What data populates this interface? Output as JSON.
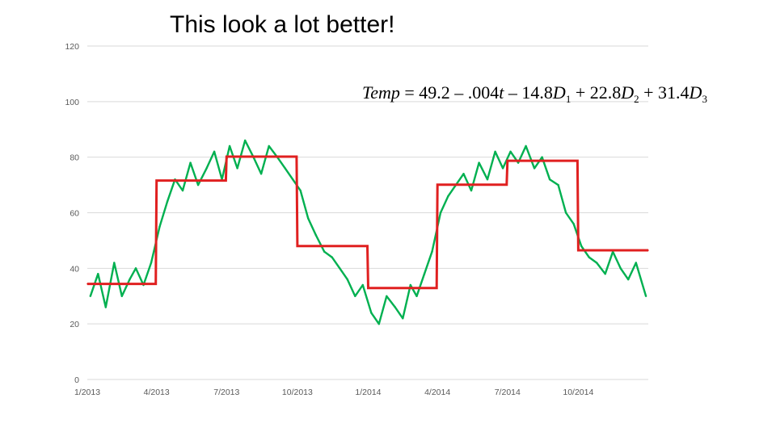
{
  "slide": {
    "title": "This look a lot better!"
  },
  "equation": {
    "lhs": "Temp",
    "eq": "=",
    "terms": [
      {
        "sign": "",
        "coef": "49.2",
        "var": "",
        "sub": ""
      },
      {
        "sign": "–",
        "coef": ".004",
        "var": "t",
        "sub": ""
      },
      {
        "sign": "–",
        "coef": "14.8",
        "var": "D",
        "sub": "1"
      },
      {
        "sign": "+",
        "coef": "22.8",
        "var": "D",
        "sub": "2"
      },
      {
        "sign": "+",
        "coef": "31.4",
        "var": "D",
        "sub": "3"
      }
    ]
  },
  "colors": {
    "observed": "#00b050",
    "fitted": "#e02020",
    "grid": "#d9d9d9",
    "tick_text": "#595959"
  },
  "chart_data": {
    "type": "line",
    "title": "",
    "xlabel": "",
    "ylabel": "",
    "ylim": [
      0,
      120
    ],
    "yticks": [
      0,
      20,
      40,
      60,
      80,
      100,
      120
    ],
    "x_ticks": [
      "1/2013",
      "4/2013",
      "7/2013",
      "10/2013",
      "1/2014",
      "4/2014",
      "7/2014",
      "10/2014"
    ],
    "x_range": [
      "2013-01-01",
      "2014-12-31"
    ],
    "grid": true,
    "legend": "none",
    "series": [
      {
        "kind": "daily-observed",
        "x": [
          "2013-01-05",
          "2013-01-15",
          "2013-01-25",
          "2013-02-05",
          "2013-02-15",
          "2013-02-25",
          "2013-03-05",
          "2013-03-15",
          "2013-03-25",
          "2013-04-05",
          "2013-04-15",
          "2013-04-25",
          "2013-05-05",
          "2013-05-15",
          "2013-05-25",
          "2013-06-05",
          "2013-06-15",
          "2013-06-25",
          "2013-07-05",
          "2013-07-15",
          "2013-07-25",
          "2013-08-05",
          "2013-08-15",
          "2013-08-25",
          "2013-09-05",
          "2013-09-15",
          "2013-09-25",
          "2013-10-05",
          "2013-10-15",
          "2013-10-25",
          "2013-11-05",
          "2013-11-15",
          "2013-11-25",
          "2013-12-05",
          "2013-12-15",
          "2013-12-25",
          "2014-01-05",
          "2014-01-15",
          "2014-01-25",
          "2014-02-05",
          "2014-02-15",
          "2014-02-25",
          "2014-03-05",
          "2014-03-15",
          "2014-03-25",
          "2014-04-05",
          "2014-04-15",
          "2014-04-25",
          "2014-05-05",
          "2014-05-15",
          "2014-05-25",
          "2014-06-05",
          "2014-06-15",
          "2014-06-25",
          "2014-07-05",
          "2014-07-15",
          "2014-07-25",
          "2014-08-05",
          "2014-08-15",
          "2014-08-25",
          "2014-09-05",
          "2014-09-15",
          "2014-09-25",
          "2014-10-05",
          "2014-10-15",
          "2014-10-25",
          "2014-11-05",
          "2014-11-15",
          "2014-11-25",
          "2014-12-05",
          "2014-12-15",
          "2014-12-28"
        ],
        "values": [
          30,
          38,
          26,
          42,
          30,
          36,
          40,
          34,
          42,
          55,
          64,
          72,
          68,
          78,
          70,
          76,
          82,
          72,
          84,
          76,
          86,
          80,
          74,
          84,
          80,
          76,
          72,
          68,
          58,
          52,
          46,
          44,
          40,
          36,
          30,
          34,
          24,
          20,
          30,
          26,
          22,
          34,
          30,
          38,
          46,
          60,
          66,
          70,
          74,
          68,
          78,
          72,
          82,
          76,
          82,
          78,
          84,
          76,
          80,
          72,
          70,
          60,
          56,
          48,
          44,
          42,
          38,
          46,
          40,
          36,
          42,
          30
        ]
      },
      {
        "kind": "fitted-step",
        "x": [
          "2013-01-01",
          "2013-03-31",
          "2013-04-01",
          "2013-06-30",
          "2013-07-01",
          "2013-09-30",
          "2013-10-01",
          "2013-12-31",
          "2014-01-01",
          "2014-03-31",
          "2014-04-01",
          "2014-06-30",
          "2014-07-01",
          "2014-09-30",
          "2014-10-01",
          "2014-12-31"
        ],
        "values": [
          34.4,
          34.4,
          71.6,
          71.6,
          80.2,
          80.2,
          48.0,
          48.0,
          32.9,
          32.9,
          70.1,
          70.1,
          78.7,
          78.7,
          46.5,
          46.5
        ]
      }
    ]
  }
}
